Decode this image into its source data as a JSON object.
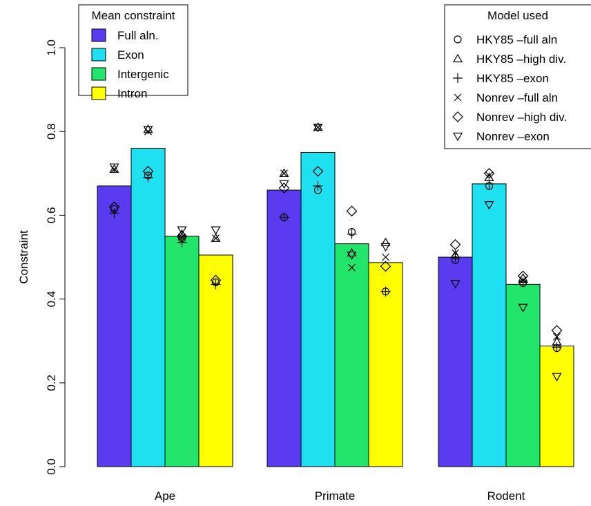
{
  "chart_data": {
    "type": "bar",
    "title": "",
    "xlabel": "",
    "ylabel": "Constraint",
    "ylim": [
      0,
      1.0
    ],
    "yticks": [
      "0.0",
      "0.2",
      "0.4",
      "0.6",
      "0.8",
      "1.0"
    ],
    "grid": false,
    "categories": [
      "Ape",
      "Primate",
      "Rodent"
    ],
    "series": [
      {
        "name": "Full aln.",
        "color": "#5B3BF0",
        "values": [
          0.67,
          0.66,
          0.5
        ]
      },
      {
        "name": "Exon",
        "color": "#1FE0F0",
        "values": [
          0.76,
          0.75,
          0.675
        ]
      },
      {
        "name": "Intergenic",
        "color": "#22E66B",
        "values": [
          0.55,
          0.532,
          0.435
        ]
      },
      {
        "name": "Intron",
        "color": "#FFFF00",
        "values": [
          0.505,
          0.487,
          0.288
        ]
      }
    ],
    "bar_legend": {
      "title": "Mean constraint",
      "placement": "top-left"
    },
    "model_legend": {
      "title": "Model used",
      "placement": "top-right",
      "items": [
        {
          "label": "HKY85 –full aln",
          "symbol": "circle"
        },
        {
          "label": "HKY85 –high div.",
          "symbol": "triangle-up"
        },
        {
          "label": "HKY85 –exon",
          "symbol": "plus"
        },
        {
          "label": "Nonrev –full aln",
          "symbol": "cross"
        },
        {
          "label": "Nonrev –high div.",
          "symbol": "diamond"
        },
        {
          "label": "Nonrev –exon",
          "symbol": "triangle-down"
        }
      ]
    },
    "model_values": [
      [
        [
          0.615,
          0.71,
          0.605,
          0.71,
          0.62,
          0.715
        ],
        [
          0.695,
          0.805,
          0.69,
          0.8,
          0.705,
          0.805
        ],
        [
          0.545,
          0.555,
          0.535,
          0.548,
          0.55,
          0.565
        ],
        [
          0.44,
          0.545,
          0.435,
          0.545,
          0.445,
          0.565
        ]
      ],
      [
        [
          0.595,
          0.7,
          0.595,
          0.7,
          0.665,
          0.675
        ],
        [
          0.66,
          0.81,
          0.67,
          0.81,
          0.705,
          0.81
        ],
        [
          0.56,
          0.51,
          0.555,
          0.475,
          0.61,
          0.505
        ],
        [
          0.418,
          0.535,
          0.418,
          0.5,
          0.478,
          0.525
        ]
      ],
      [
        [
          0.493,
          0.505,
          0.5,
          0.51,
          0.53,
          0.437
        ],
        [
          0.67,
          0.69,
          0.675,
          0.695,
          0.7,
          0.625
        ],
        [
          0.438,
          0.45,
          0.44,
          0.445,
          0.455,
          0.38
        ],
        [
          0.283,
          0.298,
          0.285,
          0.31,
          0.325,
          0.215
        ]
      ]
    ]
  }
}
